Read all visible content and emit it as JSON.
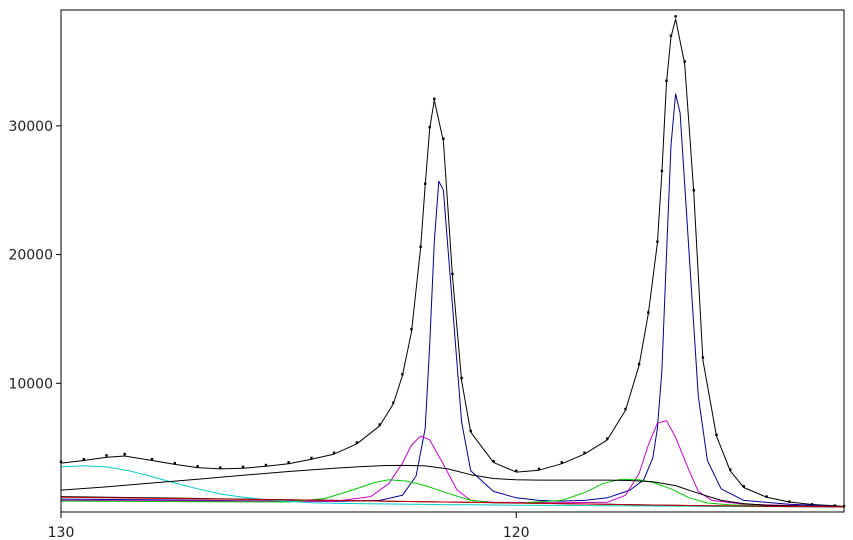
{
  "chart_data": {
    "type": "line",
    "title": "",
    "xlabel": "",
    "ylabel": "",
    "x_reversed": true,
    "xlim": [
      130,
      112.8
    ],
    "ylim": [
      0,
      39000
    ],
    "grid": false,
    "legend": "none",
    "x_ticks": [
      {
        "value": 130,
        "label": "130"
      },
      {
        "value": 120,
        "label": "120"
      }
    ],
    "y_ticks": [
      {
        "value": 10000,
        "label": "10000"
      },
      {
        "value": 20000,
        "label": "20000"
      },
      {
        "value": 30000,
        "label": "30000"
      }
    ],
    "series": [
      {
        "color": "#000000",
        "style": "dots",
        "x": [
          130,
          129.5,
          129,
          128.6,
          128,
          127.5,
          127,
          126.5,
          126,
          125.5,
          125,
          124.5,
          124,
          123.5,
          123,
          122.7,
          122.5,
          122.3,
          122.1,
          122.0,
          121.9,
          121.8,
          121.6,
          121.4,
          121.2,
          121,
          120.5,
          120,
          119.5,
          119,
          118.5,
          118,
          117.6,
          117.3,
          117.1,
          116.9,
          116.8,
          116.7,
          116.6,
          116.5,
          116.3,
          116.1,
          115.9,
          115.6,
          115.3,
          115,
          114.5,
          114,
          113.5,
          113,
          112.8
        ],
        "y": [
          3900,
          4100,
          4400,
          4500,
          4100,
          3800,
          3550,
          3450,
          3500,
          3650,
          3850,
          4200,
          4600,
          5400,
          6800,
          8500,
          10700,
          14200,
          20600,
          25500,
          29900,
          32100,
          29000,
          18500,
          10400,
          6300,
          3950,
          3200,
          3350,
          3850,
          4600,
          5700,
          8000,
          11500,
          15500,
          21000,
          26500,
          33500,
          37000,
          38500,
          35000,
          25000,
          12000,
          6000,
          3300,
          2000,
          1200,
          800,
          600,
          500,
          450
        ]
      },
      {
        "color": "#000000",
        "style": "line",
        "x": [
          130,
          129.5,
          129,
          128.6,
          128,
          127.5,
          127,
          126.5,
          126,
          125.5,
          125,
          124.5,
          124,
          123.5,
          123,
          122.7,
          122.5,
          122.3,
          122.1,
          122.0,
          121.9,
          121.8,
          121.6,
          121.4,
          121.2,
          121,
          120.5,
          120,
          119.5,
          119,
          118.5,
          118,
          117.6,
          117.3,
          117.1,
          116.9,
          116.8,
          116.7,
          116.6,
          116.5,
          116.3,
          116.1,
          115.9,
          115.6,
          115.3,
          115,
          114.5,
          114,
          113.5,
          113,
          112.8
        ],
        "y": [
          3800,
          4000,
          4250,
          4350,
          4000,
          3700,
          3450,
          3350,
          3400,
          3550,
          3750,
          4100,
          4500,
          5300,
          6700,
          8400,
          10600,
          14000,
          20500,
          25400,
          29800,
          32000,
          28800,
          18300,
          10200,
          6200,
          3850,
          3100,
          3250,
          3750,
          4500,
          5600,
          7900,
          11400,
          15400,
          20900,
          26400,
          33400,
          36900,
          38300,
          34800,
          24800,
          11800,
          5900,
          3200,
          1900,
          1150,
          780,
          580,
          480,
          430
        ]
      },
      {
        "color": "#000099",
        "style": "line",
        "x": [
          130,
          128,
          126,
          124,
          123,
          122.5,
          122.2,
          122.0,
          121.9,
          121.8,
          121.7,
          121.6,
          121.4,
          121.2,
          121,
          120.5,
          120,
          119.5,
          119,
          118.5,
          118,
          117.5,
          117.2,
          117,
          116.9,
          116.8,
          116.7,
          116.6,
          116.5,
          116.4,
          116.2,
          116,
          115.8,
          115.5,
          115,
          114,
          113,
          112.8
        ],
        "y": [
          1000,
          950,
          880,
          820,
          900,
          1300,
          2800,
          6500,
          13000,
          21000,
          25700,
          25000,
          16000,
          7000,
          3200,
          1600,
          1100,
          900,
          850,
          900,
          1100,
          1700,
          2500,
          4200,
          6500,
          11000,
          20000,
          28500,
          32500,
          31000,
          20000,
          9000,
          4000,
          1800,
          900,
          600,
          450,
          420
        ]
      },
      {
        "color": "#cc00cc",
        "style": "line",
        "x": [
          130,
          126,
          124,
          123.2,
          122.8,
          122.5,
          122.3,
          122.1,
          121.9,
          121.6,
          121.3,
          121,
          120.5,
          119,
          118,
          117.6,
          117.3,
          117.1,
          116.9,
          116.7,
          116.5,
          116.2,
          116,
          115.7,
          115,
          113,
          112.8
        ],
        "y": [
          900,
          850,
          820,
          1200,
          2200,
          3800,
          5200,
          5900,
          5600,
          3700,
          1700,
          900,
          750,
          720,
          750,
          1300,
          3000,
          5200,
          6900,
          7100,
          5800,
          3200,
          1600,
          900,
          600,
          430,
          420
        ]
      },
      {
        "color": "#00cc00",
        "style": "line",
        "x": [
          130,
          127,
          125,
          124.2,
          123.6,
          123.1,
          122.8,
          122.4,
          122,
          121.5,
          121,
          120.5,
          120,
          119,
          118.5,
          118.1,
          117.7,
          117.3,
          117,
          116.6,
          116.2,
          115.8,
          115.3,
          114.5,
          113,
          112.8
        ],
        "y": [
          850,
          800,
          780,
          1050,
          1700,
          2300,
          2500,
          2400,
          2050,
          1450,
          900,
          720,
          680,
          900,
          1500,
          2200,
          2550,
          2500,
          2300,
          1800,
          1100,
          700,
          550,
          480,
          420,
          410
        ]
      },
      {
        "color": "#00cccc",
        "style": "line",
        "x": [
          130,
          129.5,
          129,
          128.5,
          128,
          127.5,
          127,
          126.5,
          126,
          125.5,
          125,
          124.5,
          124,
          123.5,
          123,
          122.5,
          122,
          121.5,
          121,
          120,
          119,
          118,
          117,
          116,
          115,
          114,
          113,
          112.8
        ],
        "y": [
          3500,
          3600,
          3500,
          3200,
          2750,
          2250,
          1800,
          1400,
          1150,
          950,
          820,
          720,
          680,
          650,
          630,
          610,
          590,
          570,
          560,
          530,
          510,
          490,
          470,
          450,
          430,
          420,
          410,
          410
        ]
      },
      {
        "color": "#000000",
        "style": "line",
        "x": [
          130,
          129,
          128,
          127,
          126,
          125,
          124,
          123.5,
          123,
          122.5,
          122,
          121.5,
          121,
          120.5,
          120,
          119.5,
          119,
          118.5,
          118,
          117.5,
          117,
          116.5,
          116,
          115.5,
          115,
          114.5,
          114,
          113.5,
          113,
          112.8
        ],
        "y": [
          1700,
          1950,
          2250,
          2550,
          2850,
          3150,
          3400,
          3500,
          3600,
          3620,
          3580,
          3350,
          2900,
          2600,
          2500,
          2480,
          2480,
          2480,
          2480,
          2450,
          2350,
          2050,
          1450,
          900,
          650,
          530,
          480,
          450,
          430,
          420
        ]
      },
      {
        "color": "#000000",
        "style": "line",
        "x": [
          130,
          128,
          126,
          124,
          122,
          120,
          118,
          116,
          114,
          112.8
        ],
        "y": [
          1200,
          1100,
          1000,
          900,
          800,
          700,
          600,
          500,
          420,
          400
        ]
      },
      {
        "color": "#cc0000",
        "style": "line",
        "x": [
          130,
          124,
          120,
          116,
          112.8
        ],
        "y": [
          1150,
          900,
          700,
          500,
          400
        ]
      }
    ]
  }
}
